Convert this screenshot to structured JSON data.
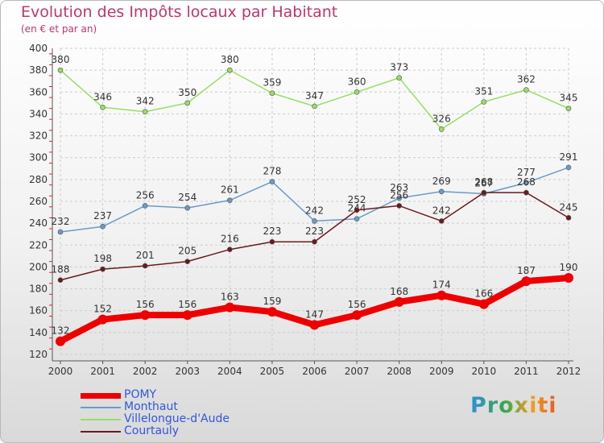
{
  "chart_data": {
    "type": "line",
    "title": "Evolution des Impôts locaux par Habitant",
    "subtitle": "(en € et par an)",
    "xlabel": "",
    "ylabel": "",
    "x": [
      "2000",
      "2001",
      "2002",
      "2003",
      "2004",
      "2005",
      "2006",
      "2007",
      "2008",
      "2009",
      "2010",
      "2011",
      "2012"
    ],
    "ylim": [
      120,
      400
    ],
    "yticks": [
      120,
      140,
      160,
      180,
      200,
      220,
      240,
      260,
      280,
      300,
      320,
      340,
      360,
      380,
      400
    ],
    "grid": true,
    "legend_position": "bottom-left",
    "series": [
      {
        "name": "POMY",
        "color": "#ee0000",
        "values": [
          132,
          152,
          156,
          156,
          163,
          159,
          147,
          156,
          168,
          174,
          166,
          187,
          190
        ]
      },
      {
        "name": "Monthaut",
        "color": "#6a9bc9",
        "values": [
          232,
          237,
          256,
          254,
          261,
          278,
          242,
          244,
          263,
          269,
          267,
          277,
          291
        ]
      },
      {
        "name": "Villelongue-d'Aude",
        "color": "#99dd66",
        "values": [
          380,
          346,
          342,
          350,
          380,
          359,
          347,
          360,
          373,
          326,
          351,
          362,
          345
        ]
      },
      {
        "name": "Courtauly",
        "color": "#6b1a1a",
        "values": [
          188,
          198,
          201,
          205,
          216,
          223,
          223,
          252,
          256,
          242,
          268,
          268,
          245
        ]
      }
    ]
  },
  "brand": {
    "text": "Proxiti"
  }
}
